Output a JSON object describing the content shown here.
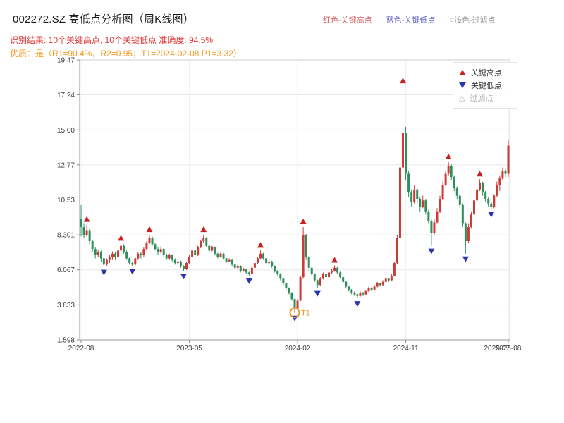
{
  "header": {
    "title": "002272.SZ 高低点分析图（周K线图）",
    "top_legend": [
      {
        "text": "红色-关键高点",
        "color": "#d95f5f"
      },
      {
        "text": "蓝色-关键低点",
        "color": "#6b6bcb"
      },
      {
        "text": "○浅色-过滤点",
        "color": "#9a9a9a"
      }
    ],
    "result_line": "识别结果: 10个关键高点, 10个关键低点  准确度: 94.5%",
    "result_color": "#e03a3a",
    "quality_line": "优质：是（R1=90.4%，R2=0.95；T1=2024-02-08 P1=3.32）",
    "quality_color": "#f59b22"
  },
  "legend_box": {
    "items": [
      {
        "label": "关键高点",
        "marker": "up-triangle",
        "color": "#cc2020"
      },
      {
        "label": "关键低点",
        "marker": "down-triangle",
        "color": "#2a35b0"
      },
      {
        "label": "过滤点",
        "marker": "hollow-up-triangle",
        "color": "#b5b5b5",
        "glyph": "△"
      }
    ]
  },
  "chart_data": {
    "type": "candlestick",
    "timeframe": "weekly",
    "title": "002272.SZ 高低点分析图（周K线图）",
    "grid": true,
    "up_color": "#cf3a34",
    "down_color": "#2e8f5e",
    "marker_colors": {
      "high": "#cc1f1f",
      "low": "#2a35b0"
    },
    "ylim": [
      1.598,
      19.47
    ],
    "y_tick_labels": [
      "19.47",
      "17.24",
      "15.00",
      "12.77",
      "10.53",
      "8.301",
      "6.067",
      "3.833",
      "1.598"
    ],
    "y_tick_values": [
      19.47,
      17.24,
      15.0,
      12.77,
      10.53,
      8.301,
      6.067,
      3.833,
      1.598
    ],
    "x_tick_labels": [
      "2022-08",
      "2023-05",
      "2024-02",
      "2024-11",
      "2025-08"
    ],
    "x_tick_weeks": [
      0,
      38,
      76,
      114,
      150
    ],
    "x_end_overlap_label": "2025-07",
    "x_end_overlap_week": 146,
    "candles": [
      [
        9.3,
        10.2,
        8.2,
        8.8
      ],
      [
        8.8,
        9.0,
        8.1,
        8.3
      ],
      [
        8.3,
        8.95,
        8.2,
        8.6
      ],
      [
        8.6,
        8.7,
        7.7,
        7.9
      ],
      [
        7.9,
        8.0,
        7.2,
        7.4
      ],
      [
        7.4,
        7.5,
        6.8,
        7.0
      ],
      [
        7.0,
        7.35,
        6.9,
        7.2
      ],
      [
        7.2,
        7.3,
        6.6,
        6.8
      ],
      [
        6.8,
        6.9,
        6.25,
        6.4
      ],
      [
        6.4,
        6.8,
        6.3,
        6.7
      ],
      [
        6.7,
        7.0,
        6.5,
        6.9
      ],
      [
        6.9,
        7.25,
        6.7,
        7.1
      ],
      [
        7.1,
        7.2,
        6.7,
        6.9
      ],
      [
        6.9,
        7.45,
        6.8,
        7.3
      ],
      [
        7.3,
        7.75,
        7.2,
        7.6
      ],
      [
        7.6,
        7.7,
        7.1,
        7.2
      ],
      [
        7.2,
        7.3,
        6.7,
        6.8
      ],
      [
        6.8,
        6.9,
        6.4,
        6.5
      ],
      [
        6.5,
        6.6,
        6.3,
        6.4
      ],
      [
        6.4,
        6.9,
        6.35,
        6.8
      ],
      [
        6.8,
        7.2,
        6.7,
        7.1
      ],
      [
        7.1,
        7.2,
        6.8,
        7.0
      ],
      [
        7.0,
        7.5,
        6.9,
        7.4
      ],
      [
        7.4,
        7.9,
        7.3,
        7.8
      ],
      [
        7.8,
        8.3,
        7.7,
        8.1
      ],
      [
        8.1,
        8.2,
        7.6,
        7.7
      ],
      [
        7.7,
        7.8,
        7.3,
        7.4
      ],
      [
        7.4,
        7.5,
        7.0,
        7.2
      ],
      [
        7.2,
        7.55,
        7.1,
        7.4
      ],
      [
        7.4,
        7.45,
        6.9,
        7.0
      ],
      [
        7.0,
        7.1,
        6.7,
        6.8
      ],
      [
        6.8,
        7.1,
        6.7,
        7.0
      ],
      [
        7.0,
        7.05,
        6.6,
        6.7
      ],
      [
        6.7,
        6.8,
        6.4,
        6.5
      ],
      [
        6.5,
        6.75,
        6.4,
        6.6
      ],
      [
        6.6,
        6.65,
        6.2,
        6.3
      ],
      [
        6.3,
        6.35,
        6.0,
        6.1
      ],
      [
        6.1,
        6.6,
        6.05,
        6.5
      ],
      [
        6.5,
        7.0,
        6.45,
        6.9
      ],
      [
        6.9,
        7.4,
        6.85,
        7.3
      ],
      [
        7.3,
        7.35,
        6.9,
        7.0
      ],
      [
        7.0,
        7.6,
        6.95,
        7.5
      ],
      [
        7.5,
        8.0,
        7.45,
        7.9
      ],
      [
        7.9,
        8.3,
        7.8,
        8.1
      ],
      [
        8.1,
        8.15,
        7.5,
        7.6
      ],
      [
        7.6,
        7.65,
        7.2,
        7.3
      ],
      [
        7.3,
        7.6,
        7.25,
        7.5
      ],
      [
        7.5,
        7.55,
        7.0,
        7.1
      ],
      [
        7.1,
        7.15,
        6.8,
        6.9
      ],
      [
        6.9,
        7.2,
        6.85,
        7.1
      ],
      [
        7.1,
        7.15,
        6.7,
        6.8
      ],
      [
        6.8,
        6.85,
        6.5,
        6.6
      ],
      [
        6.6,
        6.8,
        6.55,
        6.7
      ],
      [
        6.7,
        6.75,
        6.3,
        6.4
      ],
      [
        6.4,
        6.45,
        6.1,
        6.2
      ],
      [
        6.2,
        6.4,
        6.15,
        6.3
      ],
      [
        6.3,
        6.35,
        5.9,
        6.0
      ],
      [
        6.0,
        6.2,
        5.95,
        6.1
      ],
      [
        6.1,
        6.15,
        5.8,
        5.9
      ],
      [
        5.9,
        5.95,
        5.7,
        5.8
      ],
      [
        5.8,
        6.3,
        5.75,
        6.2
      ],
      [
        6.2,
        6.6,
        6.15,
        6.5
      ],
      [
        6.5,
        6.9,
        6.45,
        6.8
      ],
      [
        6.8,
        7.3,
        6.75,
        7.1
      ],
      [
        7.1,
        7.15,
        6.7,
        6.8
      ],
      [
        6.8,
        6.85,
        6.4,
        6.5
      ],
      [
        6.5,
        6.7,
        6.45,
        6.6
      ],
      [
        6.6,
        6.65,
        6.2,
        6.3
      ],
      [
        6.3,
        6.35,
        5.9,
        6.0
      ],
      [
        6.0,
        6.05,
        5.7,
        5.8
      ],
      [
        5.8,
        5.85,
        5.4,
        5.5
      ],
      [
        5.5,
        5.55,
        5.1,
        5.2
      ],
      [
        5.2,
        5.25,
        4.8,
        4.9
      ],
      [
        4.9,
        4.95,
        4.5,
        4.6
      ],
      [
        4.6,
        4.65,
        4.1,
        4.2
      ],
      [
        4.2,
        4.25,
        3.32,
        3.6
      ],
      [
        3.6,
        4.2,
        3.5,
        4.1
      ],
      [
        4.1,
        5.7,
        4.05,
        5.6
      ],
      [
        5.6,
        8.8,
        5.5,
        8.3
      ],
      [
        8.3,
        8.35,
        6.7,
        6.9
      ],
      [
        6.9,
        6.95,
        6.0,
        6.2
      ],
      [
        6.2,
        6.25,
        5.7,
        5.8
      ],
      [
        5.8,
        5.85,
        5.3,
        5.4
      ],
      [
        5.4,
        5.45,
        4.9,
        5.1
      ],
      [
        5.1,
        5.6,
        5.05,
        5.5
      ],
      [
        5.5,
        5.9,
        5.45,
        5.8
      ],
      [
        5.8,
        5.85,
        5.5,
        5.6
      ],
      [
        5.6,
        6.0,
        5.55,
        5.9
      ],
      [
        5.9,
        6.1,
        5.8,
        6.0
      ],
      [
        6.0,
        6.35,
        5.95,
        6.2
      ],
      [
        6.2,
        6.25,
        5.8,
        5.9
      ],
      [
        5.9,
        5.95,
        5.5,
        5.6
      ],
      [
        5.6,
        5.65,
        5.2,
        5.3
      ],
      [
        5.3,
        5.35,
        4.9,
        5.0
      ],
      [
        5.0,
        5.05,
        4.7,
        4.8
      ],
      [
        4.8,
        4.85,
        4.5,
        4.6
      ],
      [
        4.6,
        4.7,
        4.4,
        4.5
      ],
      [
        4.5,
        4.55,
        4.25,
        4.4
      ],
      [
        4.4,
        4.7,
        4.35,
        4.6
      ],
      [
        4.6,
        4.65,
        4.4,
        4.5
      ],
      [
        4.5,
        4.8,
        4.45,
        4.7
      ],
      [
        4.7,
        5.0,
        4.65,
        4.9
      ],
      [
        4.9,
        4.95,
        4.7,
        4.8
      ],
      [
        4.8,
        5.1,
        4.75,
        5.0
      ],
      [
        5.0,
        5.3,
        4.95,
        5.2
      ],
      [
        5.2,
        5.25,
        5.0,
        5.1
      ],
      [
        5.1,
        5.4,
        5.05,
        5.3
      ],
      [
        5.3,
        5.6,
        5.25,
        5.5
      ],
      [
        5.5,
        5.55,
        5.3,
        5.4
      ],
      [
        5.4,
        5.8,
        5.35,
        5.7
      ],
      [
        5.7,
        6.6,
        5.65,
        6.5
      ],
      [
        6.5,
        8.3,
        6.45,
        8.1
      ],
      [
        8.1,
        13.0,
        8.0,
        12.6
      ],
      [
        12.6,
        17.8,
        12.0,
        14.8
      ],
      [
        14.8,
        15.2,
        11.8,
        12.2
      ],
      [
        12.2,
        12.4,
        10.7,
        11.0
      ],
      [
        11.0,
        11.2,
        10.1,
        10.4
      ],
      [
        10.4,
        11.5,
        10.3,
        11.2
      ],
      [
        11.2,
        11.3,
        10.3,
        10.6
      ],
      [
        10.6,
        10.7,
        9.8,
        10.1
      ],
      [
        10.1,
        10.8,
        10.0,
        10.5
      ],
      [
        10.5,
        10.6,
        9.6,
        9.8
      ],
      [
        9.8,
        9.9,
        9.0,
        9.2
      ],
      [
        9.2,
        9.3,
        7.6,
        8.4
      ],
      [
        8.4,
        9.3,
        8.3,
        9.1
      ],
      [
        9.1,
        10.0,
        9.0,
        9.8
      ],
      [
        9.8,
        10.8,
        9.7,
        10.6
      ],
      [
        10.6,
        11.7,
        10.5,
        11.5
      ],
      [
        11.5,
        12.4,
        11.4,
        12.2
      ],
      [
        12.2,
        12.95,
        12.1,
        12.7
      ],
      [
        12.7,
        12.8,
        11.8,
        12.0
      ],
      [
        12.0,
        12.1,
        11.1,
        11.3
      ],
      [
        11.3,
        11.4,
        10.6,
        10.8
      ],
      [
        10.8,
        10.9,
        10.0,
        10.2
      ],
      [
        10.2,
        10.3,
        8.8,
        9.0
      ],
      [
        9.0,
        9.1,
        7.1,
        7.9
      ],
      [
        7.9,
        9.0,
        7.8,
        8.8
      ],
      [
        8.8,
        9.8,
        8.7,
        9.6
      ],
      [
        9.6,
        10.7,
        9.5,
        10.5
      ],
      [
        10.5,
        11.4,
        10.4,
        11.2
      ],
      [
        11.2,
        11.85,
        11.1,
        11.6
      ],
      [
        11.6,
        11.7,
        10.8,
        11.0
      ],
      [
        11.0,
        11.1,
        10.4,
        10.6
      ],
      [
        10.6,
        10.7,
        10.1,
        10.3
      ],
      [
        10.3,
        10.4,
        9.95,
        10.1
      ],
      [
        10.1,
        10.9,
        10.0,
        10.8
      ],
      [
        10.8,
        11.7,
        10.7,
        11.5
      ],
      [
        11.5,
        12.1,
        11.1,
        11.9
      ],
      [
        11.9,
        12.6,
        11.8,
        12.4
      ],
      [
        12.4,
        12.5,
        12.0,
        12.2
      ],
      [
        12.2,
        14.4,
        12.0,
        14.0
      ]
    ],
    "key_high_markers": [
      {
        "week": 2,
        "price": 8.95
      },
      {
        "week": 14,
        "price": 7.75
      },
      {
        "week": 24,
        "price": 8.3
      },
      {
        "week": 43,
        "price": 8.3
      },
      {
        "week": 63,
        "price": 7.3
      },
      {
        "week": 78,
        "price": 8.8
      },
      {
        "week": 89,
        "price": 6.35
      },
      {
        "week": 113,
        "price": 17.8
      },
      {
        "week": 129,
        "price": 12.95
      },
      {
        "week": 140,
        "price": 11.85
      }
    ],
    "key_low_markers": [
      {
        "week": 8,
        "price": 6.25
      },
      {
        "week": 18,
        "price": 6.3
      },
      {
        "week": 36,
        "price": 6.0
      },
      {
        "week": 59,
        "price": 5.7
      },
      {
        "week": 75,
        "price": 3.32
      },
      {
        "week": 83,
        "price": 4.9
      },
      {
        "week": 97,
        "price": 4.25
      },
      {
        "week": 123,
        "price": 7.6
      },
      {
        "week": 135,
        "price": 7.1
      },
      {
        "week": 144,
        "price": 9.95
      }
    ],
    "filtered_marker": {
      "week": 75,
      "price": 3.32,
      "label": "T1",
      "color": "#e8962e"
    },
    "legend_entries": [
      "关键高点",
      "关键低点",
      "过滤点"
    ]
  }
}
